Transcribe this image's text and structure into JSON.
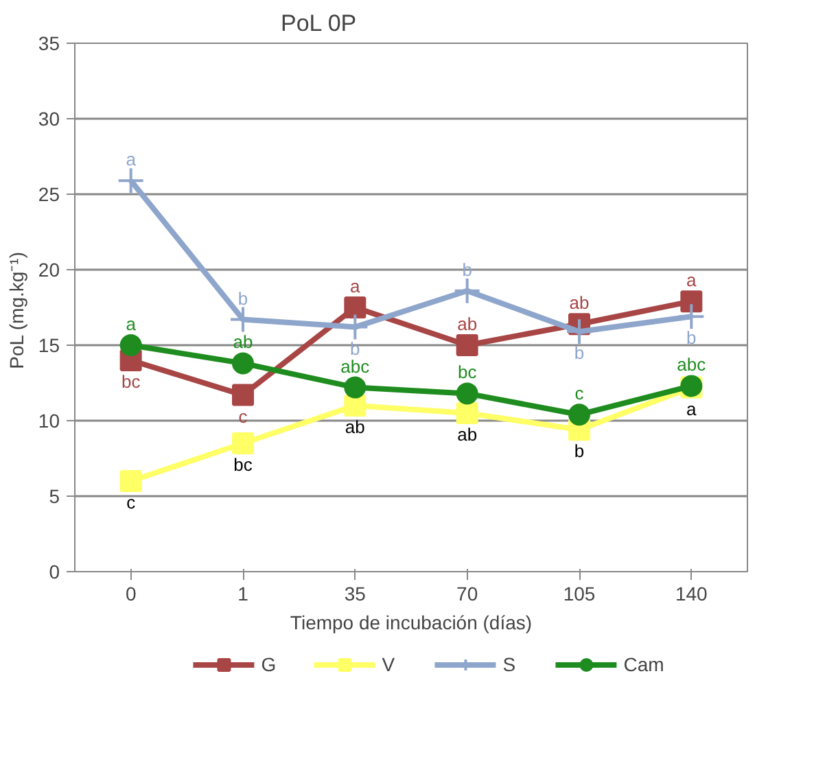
{
  "chart_data": {
    "type": "line",
    "title": "PoL 0P",
    "xlabel": "Tiempo de incubación (días)",
    "ylabel": "PoL  (mg.kg⁻¹)",
    "categories": [
      "0",
      "1",
      "35",
      "70",
      "105",
      "140"
    ],
    "ylim": [
      0,
      35
    ],
    "yticks": [
      0,
      5,
      10,
      15,
      20,
      25,
      30,
      35
    ],
    "grid": "y",
    "legend": "bottom",
    "series": [
      {
        "name": "G",
        "color": "#a84545",
        "marker": "square",
        "values": [
          14,
          11.7,
          17.5,
          15,
          16.4,
          17.9
        ]
      },
      {
        "name": "V",
        "color": "#ffff66",
        "marker": "square",
        "values": [
          6,
          8.5,
          11,
          10.5,
          9.4,
          12.2
        ]
      },
      {
        "name": "S",
        "color": "#8ea5cc",
        "marker": "cross",
        "values": [
          25.9,
          16.7,
          16.2,
          18.6,
          15.9,
          16.9
        ]
      },
      {
        "name": "Cam",
        "color": "#1e8c1e",
        "marker": "circle",
        "values": [
          15,
          13.8,
          12.2,
          11.8,
          10.4,
          12.3
        ]
      }
    ],
    "annotations": [
      {
        "text": "a",
        "x": "0",
        "y": 25.9
      },
      {
        "text": "b",
        "x": "1",
        "y": 16.7
      },
      {
        "text": "b",
        "x": "35",
        "y": 16.2
      },
      {
        "text": "b",
        "x": "70",
        "y": 18.6
      },
      {
        "text": "b",
        "x": "105",
        "y": 15.9
      },
      {
        "text": "b",
        "x": "140",
        "y": 16.9
      },
      {
        "text": "bc",
        "x": "0",
        "y": 14
      },
      {
        "text": "c",
        "x": "1",
        "y": 11.7
      },
      {
        "text": "a",
        "x": "35",
        "y": 17.5
      },
      {
        "text": "ab",
        "x": "70",
        "y": 15
      },
      {
        "text": "ab",
        "x": "105",
        "y": 16.4
      },
      {
        "text": "a",
        "x": "140",
        "y": 17.9
      },
      {
        "text": "a",
        "x": "0",
        "y": 15
      },
      {
        "text": "ab",
        "x": "1",
        "y": 13.8
      },
      {
        "text": "abc",
        "x": "35",
        "y": 12.2
      },
      {
        "text": "bc",
        "x": "70",
        "y": 11.8
      },
      {
        "text": "c",
        "x": "105",
        "y": 10.4
      },
      {
        "text": "abc",
        "x": "140",
        "y": 12.3
      },
      {
        "text": "c",
        "x": "0",
        "y": 6
      },
      {
        "text": "bc",
        "x": "1",
        "y": 8.5
      },
      {
        "text": "ab",
        "x": "35",
        "y": 11
      },
      {
        "text": "ab",
        "x": "70",
        "y": 10.5
      },
      {
        "text": "b",
        "x": "105",
        "y": 9.4
      },
      {
        "text": "a",
        "x": "140",
        "y": 12.2
      }
    ]
  }
}
